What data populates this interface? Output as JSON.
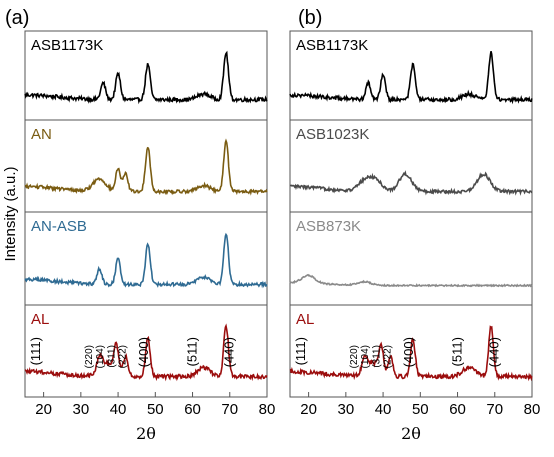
{
  "chart_data": [
    {
      "panel": "(a)",
      "type": "line",
      "xlabel": "2θ",
      "ylabel": "Intensity (a.u.)",
      "xlim": [
        15,
        80
      ],
      "xticks": [
        20,
        30,
        40,
        50,
        60,
        70,
        80
      ],
      "subplots": [
        {
          "label": "ASB1173K",
          "color": "#000000",
          "peaks": [
            [
              36,
              0.35
            ],
            [
              40,
              0.55
            ],
            [
              48,
              0.75
            ],
            [
              69,
              1.0
            ],
            [
              63,
              0.12
            ]
          ],
          "noise": 0.05,
          "baseline": 0.05
        },
        {
          "label": "AN",
          "color": "#7a5c12",
          "peaks": [
            [
              35,
              0.25
            ],
            [
              40,
              0.45
            ],
            [
              42,
              0.35
            ],
            [
              48,
              0.9
            ],
            [
              63,
              0.12
            ],
            [
              69,
              1.0
            ]
          ],
          "noise": 0.04,
          "baseline": 0.05
        },
        {
          "label": "AN-ASB",
          "color": "#2f6b93",
          "peaks": [
            [
              35,
              0.3
            ],
            [
              40,
              0.5
            ],
            [
              48,
              0.8
            ],
            [
              63,
              0.15
            ],
            [
              69,
              1.0
            ]
          ],
          "noise": 0.04,
          "baseline": 0.05
        },
        {
          "label": "AL",
          "color": "#9b0d0d",
          "peaks": [
            [
              35,
              0.3
            ],
            [
              37,
              0.28
            ],
            [
              39.5,
              0.55
            ],
            [
              42,
              0.4
            ],
            [
              48,
              0.75
            ],
            [
              63,
              0.18
            ],
            [
              69,
              1.0
            ]
          ],
          "noise": 0.05,
          "baseline": 0.05,
          "annotations": [
            {
              "text": "(111)",
              "x": 19
            },
            {
              "text": "(220)",
              "x": 33,
              "small": true
            },
            {
              "text": "(104)",
              "x": 36,
              "small": true
            },
            {
              "text": "(311)",
              "x": 39,
              "small": true
            },
            {
              "text": "(222)",
              "x": 42,
              "small": true
            },
            {
              "text": "(400)",
              "x": 48
            },
            {
              "text": "(511)",
              "x": 61
            },
            {
              "text": "(440)",
              "x": 71
            }
          ]
        }
      ]
    },
    {
      "panel": "(b)",
      "type": "line",
      "xlabel": "2θ",
      "xlim": [
        15,
        80
      ],
      "xticks": [
        20,
        30,
        40,
        50,
        60,
        70,
        80
      ],
      "subplots": [
        {
          "label": "ASB1173K",
          "color": "#000000",
          "peaks": [
            [
              36,
              0.35
            ],
            [
              40,
              0.55
            ],
            [
              48,
              0.75
            ],
            [
              69,
              1.0
            ],
            [
              63,
              0.12
            ]
          ],
          "noise": 0.05,
          "baseline": 0.05
        },
        {
          "label": "ASB1023K",
          "color": "#4b4b4b",
          "peaks": [
            [
              35,
              0.2
            ],
            [
              38,
              0.22
            ],
            [
              46,
              0.35
            ],
            [
              67,
              0.35
            ]
          ],
          "noise": 0.04,
          "baseline": 0.05
        },
        {
          "label": "ASB873K",
          "color": "#8a8a8a",
          "peaks": [
            [
              20,
              0.25
            ],
            [
              35,
              0.12
            ]
          ],
          "noise": 0.03,
          "baseline": 0.05
        },
        {
          "label": "AL",
          "color": "#9b0d0d",
          "peaks": [
            [
              35,
              0.3
            ],
            [
              37,
              0.28
            ],
            [
              39.5,
              0.55
            ],
            [
              42,
              0.4
            ],
            [
              48,
              0.75
            ],
            [
              63,
              0.18
            ],
            [
              69,
              1.0
            ]
          ],
          "noise": 0.05,
          "baseline": 0.05,
          "annotations": [
            {
              "text": "(111)",
              "x": 19
            },
            {
              "text": "(220)",
              "x": 33,
              "small": true
            },
            {
              "text": "(104)",
              "x": 36,
              "small": true
            },
            {
              "text": "(311)",
              "x": 39,
              "small": true
            },
            {
              "text": "(222)",
              "x": 42,
              "small": true
            },
            {
              "text": "(400)",
              "x": 48
            },
            {
              "text": "(511)",
              "x": 61
            },
            {
              "text": "(440)",
              "x": 71
            }
          ]
        }
      ]
    }
  ]
}
